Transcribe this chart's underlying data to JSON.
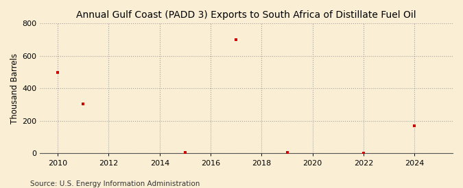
{
  "title": "Annual Gulf Coast (PADD 3) Exports to South Africa of Distillate Fuel Oil",
  "ylabel": "Thousand Barrels",
  "source": "Source: U.S. Energy Information Administration",
  "background_color": "#faefd4",
  "plot_bg_color": "#faefd4",
  "grid_color": "#999999",
  "marker_color": "#cc0000",
  "x_data": [
    2010,
    2011,
    2015,
    2017,
    2019,
    2022,
    2024
  ],
  "y_data": [
    500,
    305,
    5,
    700,
    5,
    4,
    170
  ],
  "xlim": [
    2009.3,
    2025.5
  ],
  "ylim": [
    0,
    800
  ],
  "yticks": [
    0,
    200,
    400,
    600,
    800
  ],
  "xticks": [
    2010,
    2012,
    2014,
    2016,
    2018,
    2020,
    2022,
    2024
  ],
  "title_fontsize": 10,
  "label_fontsize": 8.5,
  "tick_fontsize": 8,
  "source_fontsize": 7.5
}
